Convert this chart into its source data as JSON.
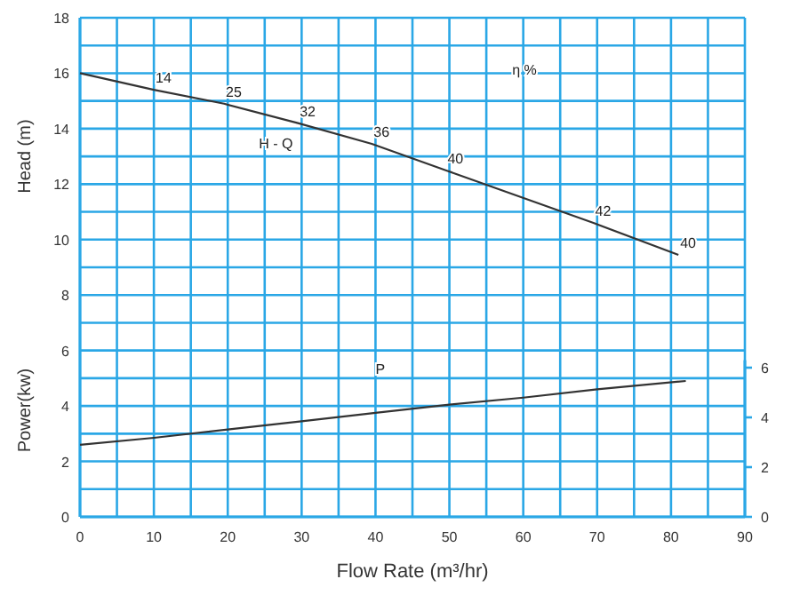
{
  "chart_data": {
    "type": "line",
    "xlabel": "Flow Rate (m³/hr)",
    "ylabel": "Head (m)",
    "xlim": [
      0,
      90
    ],
    "xticks": [
      0,
      {
        "value": 5,
        "label": null
      },
      10,
      {
        "value": 15,
        "label": null
      },
      20,
      {
        "value": 25,
        "label": null
      },
      30,
      {
        "value": 35,
        "label": null
      },
      40,
      {
        "value": 45,
        "label": null
      },
      50,
      {
        "value": 55,
        "label": null
      },
      60,
      {
        "value": 65,
        "label": null
      },
      70,
      {
        "value": 75,
        "label": null
      },
      80,
      {
        "value": 85,
        "label": null
      },
      90
    ],
    "ylim": [
      0,
      18
    ],
    "yticks": [
      0,
      {
        "value": 1,
        "label": null
      },
      2,
      {
        "value": 3,
        "label": null
      },
      4,
      {
        "value": 5,
        "label": null
      },
      6,
      {
        "value": 7,
        "label": null
      },
      8,
      {
        "value": 9,
        "label": null
      },
      10,
      {
        "value": 11,
        "label": null
      },
      12,
      {
        "value": 13,
        "label": null
      },
      14,
      {
        "value": 15,
        "label": null
      },
      16,
      {
        "value": 17,
        "label": null
      },
      18
    ],
    "y2lim": [
      0,
      6.3
    ],
    "y2ticks": [
      0,
      2,
      4,
      6
    ],
    "grid": true,
    "marker": "none",
    "line_style": "solid",
    "series": [
      {
        "name": "H - Q",
        "color": "#333333",
        "x": [
          0,
          10,
          19.5,
          29.5,
          39.5,
          49.5,
          69.5,
          81
        ],
        "values": [
          16,
          15.4,
          14.9,
          14.2,
          13.45,
          12.5,
          10.6,
          9.45
        ]
      },
      {
        "name": "P",
        "color": "#333333",
        "x": [
          0,
          10,
          20,
          30,
          40,
          50,
          60,
          70,
          82
        ],
        "values": [
          2.6,
          2.85,
          3.15,
          3.45,
          3.75,
          4.05,
          4.3,
          4.6,
          4.9
        ]
      }
    ],
    "annotations": [
      {
        "text": "14",
        "x": 10,
        "y": 15.4
      },
      {
        "text": "25",
        "x": 19.5,
        "y": 14.9
      },
      {
        "text": "32",
        "x": 29.5,
        "y": 14.2
      },
      {
        "text": "36",
        "x": 39.5,
        "y": 13.45
      },
      {
        "text": "40",
        "x": 49.5,
        "y": 12.5
      },
      {
        "text": "42",
        "x": 69.5,
        "y": 10.6
      },
      {
        "text": "40",
        "x": 81,
        "y": 9.45
      },
      "η %",
      "Power(kw)"
    ]
  }
}
